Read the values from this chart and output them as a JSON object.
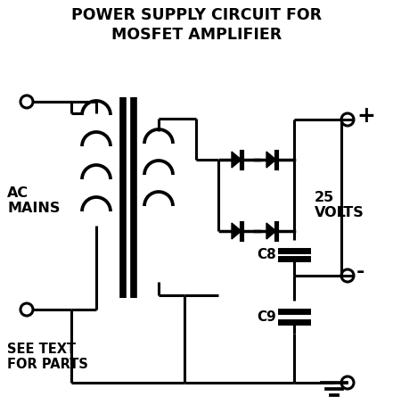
{
  "title_line1": "POWER SUPPLY CIRCUIT FOR",
  "title_line2": "MOSFET AMPLIFIER",
  "label_ac_mains": "AC\nMAINS",
  "label_25v": "25\nVOLTS",
  "label_see_text": "SEE TEXT\nFOR PARTS",
  "label_plus": "+",
  "label_minus": "-",
  "label_c8": "C8",
  "label_c9": "C9",
  "bg_color": "#ffffff",
  "line_color": "#000000",
  "fig_width": 4.41,
  "fig_height": 4.64,
  "dpi": 100
}
